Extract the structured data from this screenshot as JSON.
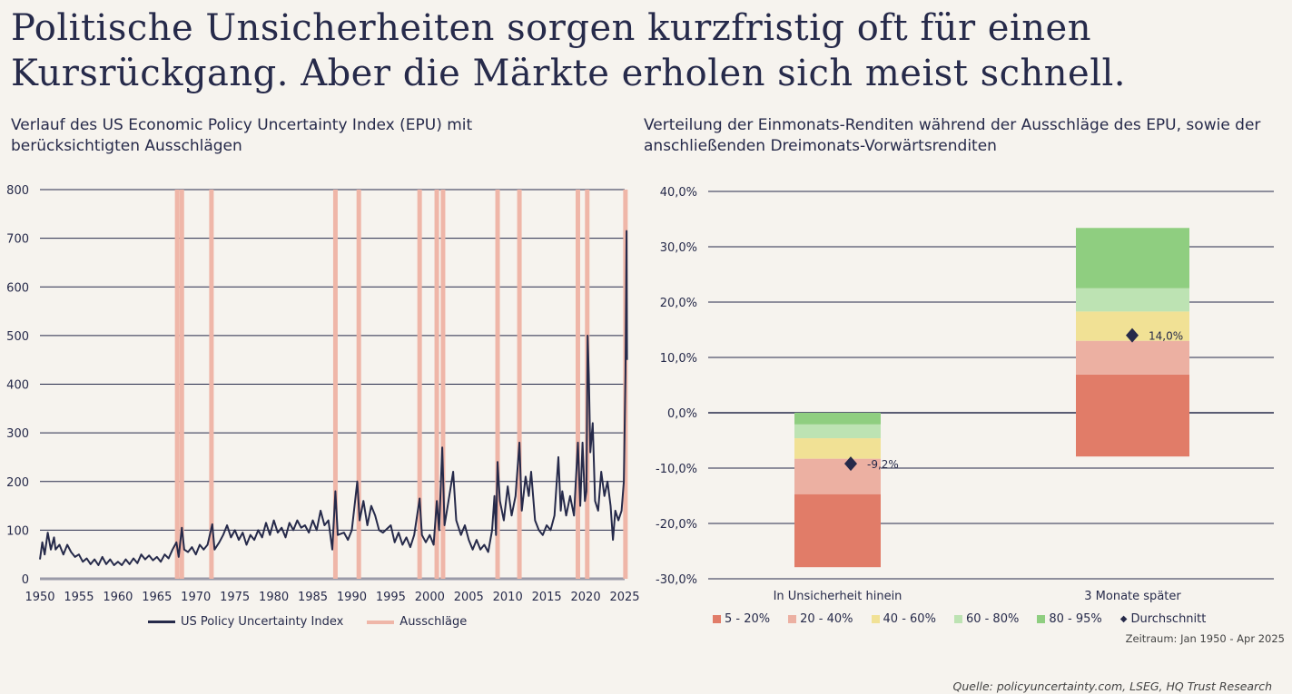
{
  "title": "Politische Unsicherheiten sorgen kurzfristig oft für einen Kursrückgang. Aber die Märkte erholen sich meist schnell.",
  "colors": {
    "background": "#f6f3ee",
    "navy": "#262a4a",
    "ausschlaege": "#efb6a8",
    "p5_20": "#e17c68",
    "p20_40": "#ecb0a2",
    "p40_60": "#f1e195",
    "p60_80": "#bde3b3",
    "p80_95": "#8fce80"
  },
  "chart_data": [
    {
      "type": "line",
      "title": "Verlauf des US Economic Policy Uncertainty Index (EPU) mit berücksichtigten Ausschlägen",
      "xlabel": "",
      "ylabel": "",
      "xlim": [
        1950,
        2025
      ],
      "ylim": [
        0,
        800
      ],
      "x_ticks": [
        "1950",
        "1955",
        "1960",
        "1965",
        "1970",
        "1975",
        "1980",
        "1985",
        "1990",
        "1995",
        "2000",
        "2005",
        "2010",
        "2015",
        "2020",
        "2025"
      ],
      "y_ticks": [
        "0",
        "100",
        "200",
        "300",
        "400",
        "500",
        "600",
        "700",
        "800"
      ],
      "grid": true,
      "legend": {
        "position": "bottom",
        "entries": [
          "US Policy Uncertainty Index",
          "Ausschläge"
        ]
      },
      "series": [
        {
          "name": "US Policy Uncertainty Index",
          "color": "#262a4a",
          "points": [
            [
              1950,
              40
            ],
            [
              1950.3,
              75
            ],
            [
              1950.6,
              50
            ],
            [
              1951,
              95
            ],
            [
              1951.4,
              60
            ],
            [
              1951.8,
              85
            ],
            [
              1952,
              60
            ],
            [
              1952.5,
              70
            ],
            [
              1953,
              50
            ],
            [
              1953.5,
              70
            ],
            [
              1954,
              55
            ],
            [
              1954.5,
              45
            ],
            [
              1955,
              50
            ],
            [
              1955.5,
              35
            ],
            [
              1956,
              42
            ],
            [
              1956.5,
              30
            ],
            [
              1957,
              40
            ],
            [
              1957.5,
              28
            ],
            [
              1958,
              45
            ],
            [
              1958.5,
              30
            ],
            [
              1959,
              40
            ],
            [
              1959.5,
              28
            ],
            [
              1960,
              35
            ],
            [
              1960.5,
              28
            ],
            [
              1961,
              40
            ],
            [
              1961.5,
              30
            ],
            [
              1962,
              42
            ],
            [
              1962.5,
              32
            ],
            [
              1963,
              50
            ],
            [
              1963.5,
              40
            ],
            [
              1964,
              48
            ],
            [
              1964.5,
              38
            ],
            [
              1965,
              45
            ],
            [
              1965.5,
              35
            ],
            [
              1966,
              50
            ],
            [
              1966.5,
              42
            ],
            [
              1967,
              60
            ],
            [
              1967.5,
              75
            ],
            [
              1967.8,
              45
            ],
            [
              1968.2,
              105
            ],
            [
              1968.5,
              60
            ],
            [
              1969,
              55
            ],
            [
              1969.5,
              65
            ],
            [
              1970,
              50
            ],
            [
              1970.5,
              70
            ],
            [
              1971,
              60
            ],
            [
              1971.5,
              70
            ],
            [
              1972.1,
              112
            ],
            [
              1972.4,
              60
            ],
            [
              1973,
              75
            ],
            [
              1973.5,
              90
            ],
            [
              1974,
              110
            ],
            [
              1974.5,
              85
            ],
            [
              1975,
              100
            ],
            [
              1975.5,
              80
            ],
            [
              1976,
              95
            ],
            [
              1976.5,
              70
            ],
            [
              1977,
              90
            ],
            [
              1977.5,
              80
            ],
            [
              1978,
              100
            ],
            [
              1978.5,
              85
            ],
            [
              1979,
              115
            ],
            [
              1979.5,
              90
            ],
            [
              1980,
              120
            ],
            [
              1980.5,
              95
            ],
            [
              1981,
              105
            ],
            [
              1981.5,
              85
            ],
            [
              1982,
              115
            ],
            [
              1982.5,
              100
            ],
            [
              1983,
              120
            ],
            [
              1983.5,
              105
            ],
            [
              1984,
              110
            ],
            [
              1984.5,
              95
            ],
            [
              1985,
              120
            ],
            [
              1985.5,
              100
            ],
            [
              1986,
              140
            ],
            [
              1986.5,
              110
            ],
            [
              1987,
              120
            ],
            [
              1987.5,
              60
            ],
            [
              1987.9,
              180
            ],
            [
              1988.2,
              90
            ],
            [
              1989,
              95
            ],
            [
              1989.5,
              80
            ],
            [
              1990,
              100
            ],
            [
              1990.7,
              200
            ],
            [
              1991,
              120
            ],
            [
              1991.5,
              160
            ],
            [
              1992,
              110
            ],
            [
              1992.5,
              150
            ],
            [
              1993,
              130
            ],
            [
              1993.5,
              100
            ],
            [
              1994,
              95
            ],
            [
              1995,
              110
            ],
            [
              1995.5,
              75
            ],
            [
              1996,
              95
            ],
            [
              1996.5,
              70
            ],
            [
              1997,
              85
            ],
            [
              1997.5,
              65
            ],
            [
              1998,
              90
            ],
            [
              1998.7,
              165
            ],
            [
              1999,
              90
            ],
            [
              1999.5,
              75
            ],
            [
              2000,
              90
            ],
            [
              2000.5,
              70
            ],
            [
              2000.9,
              160
            ],
            [
              2001.2,
              100
            ],
            [
              2001.6,
              270
            ],
            [
              2001.9,
              110
            ],
            [
              2002.3,
              150
            ],
            [
              2003,
              220
            ],
            [
              2003.4,
              120
            ],
            [
              2004,
              90
            ],
            [
              2004.5,
              110
            ],
            [
              2005,
              80
            ],
            [
              2005.5,
              60
            ],
            [
              2006,
              80
            ],
            [
              2006.5,
              60
            ],
            [
              2007,
              70
            ],
            [
              2007.5,
              55
            ],
            [
              2008,
              100
            ],
            [
              2008.3,
              170
            ],
            [
              2008.5,
              90
            ],
            [
              2008.7,
              240
            ],
            [
              2009,
              160
            ],
            [
              2009.5,
              120
            ],
            [
              2010,
              190
            ],
            [
              2010.5,
              130
            ],
            [
              2011,
              170
            ],
            [
              2011.5,
              280
            ],
            [
              2011.8,
              140
            ],
            [
              2012.3,
              210
            ],
            [
              2012.7,
              170
            ],
            [
              2013,
              220
            ],
            [
              2013.5,
              120
            ],
            [
              2014,
              100
            ],
            [
              2014.5,
              90
            ],
            [
              2015,
              110
            ],
            [
              2015.5,
              100
            ],
            [
              2016,
              130
            ],
            [
              2016.5,
              250
            ],
            [
              2016.8,
              140
            ],
            [
              2017,
              180
            ],
            [
              2017.5,
              130
            ],
            [
              2018,
              170
            ],
            [
              2018.5,
              130
            ],
            [
              2019,
              280
            ],
            [
              2019.3,
              150
            ],
            [
              2019.6,
              280
            ],
            [
              2019.9,
              160
            ],
            [
              2020.1,
              180
            ],
            [
              2020.25,
              500
            ],
            [
              2020.4,
              420
            ],
            [
              2020.6,
              260
            ],
            [
              2020.9,
              320
            ],
            [
              2021.2,
              160
            ],
            [
              2021.6,
              140
            ],
            [
              2022,
              220
            ],
            [
              2022.4,
              170
            ],
            [
              2022.8,
              200
            ],
            [
              2023.2,
              150
            ],
            [
              2023.5,
              80
            ],
            [
              2023.8,
              140
            ],
            [
              2024.2,
              120
            ],
            [
              2024.6,
              140
            ],
            [
              2024.9,
              200
            ],
            [
              2025.1,
              420
            ],
            [
              2025.25,
              715
            ],
            [
              2025.3,
              450
            ]
          ]
        }
      ],
      "ausschlaege_years": [
        1967.6,
        1968.2,
        1972.0,
        1987.9,
        1990.9,
        1998.7,
        2000.9,
        2001.7,
        2008.7,
        2011.5,
        2019.0,
        2020.2,
        2025.1
      ]
    },
    {
      "type": "bar",
      "subtype": "floating-stacked",
      "title": "Verteilung der Einmonats-Renditen während der Ausschläge des EPU, sowie der anschließenden Dreimonats-Vorwärtsrenditen",
      "ylim": [
        -30,
        40
      ],
      "y_ticks": [
        "40,0%",
        "30,0%",
        "20,0%",
        "10,0%",
        "0,0%",
        "-10,0%",
        "-20,0%",
        "-30,0%"
      ],
      "grid": true,
      "categories": [
        "In Unsicherheit hinein",
        "3 Monate später"
      ],
      "legend": {
        "position": "bottom",
        "entries": [
          "5 - 20%",
          "20 - 40%",
          "40 - 60%",
          "60 - 80%",
          "80 - 95%",
          "Durchschnitt"
        ]
      },
      "bands": [
        {
          "name": "5 - 20%",
          "ranges": [
            [
              -27.9,
              -14.7
            ],
            [
              -7.9,
              6.9
            ]
          ]
        },
        {
          "name": "20 - 40%",
          "ranges": [
            [
              -14.7,
              -8.3
            ],
            [
              6.9,
              13.0
            ]
          ]
        },
        {
          "name": "40 - 60%",
          "ranges": [
            [
              -8.3,
              -4.6
            ],
            [
              13.0,
              18.3
            ]
          ]
        },
        {
          "name": "60 - 80%",
          "ranges": [
            [
              -4.6,
              -2.1
            ],
            [
              18.3,
              22.5
            ]
          ]
        },
        {
          "name": "80 - 95%",
          "ranges": [
            [
              -2.1,
              0.0
            ],
            [
              22.5,
              33.4
            ]
          ]
        }
      ],
      "average": {
        "name": "Durchschnitt",
        "values": [
          -9.2,
          14.0
        ],
        "labels": [
          "-9,2%",
          "14,0%"
        ]
      }
    }
  ],
  "footer": {
    "period": "Zeitraum: Jan 1950 - Apr 2025",
    "source": "Quelle: policyuncertainty.com, LSEG, HQ Trust Research"
  }
}
